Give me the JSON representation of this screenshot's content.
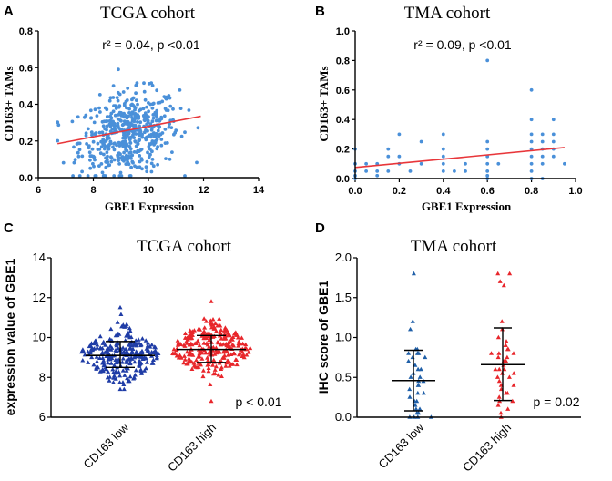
{
  "chart_data": [
    {
      "panel": "A",
      "type": "scatter",
      "title": "TCGA cohort",
      "annotation_r2": "r² = 0.04, p <0.01",
      "xlabel": "GBE1 Expression",
      "ylabel": "CD163+ TAMs",
      "xlim": [
        6,
        14
      ],
      "ylim": [
        0,
        0.8
      ],
      "xticks": [
        "6",
        "8",
        "10",
        "12",
        "14"
      ],
      "yticks": [
        "0.0",
        "0.2",
        "0.4",
        "0.6",
        "0.8"
      ],
      "point_color": "#4a90d9",
      "point_count": 520,
      "point_distribution": "x approx normal mean 9.3 sd 0.9, y approx 0.25 ± 0.12",
      "regression_line": {
        "x": [
          6.7,
          11.9
        ],
        "y": [
          0.185,
          0.335
        ],
        "color": "#e8363a"
      }
    },
    {
      "panel": "B",
      "type": "scatter",
      "title": "TMA cohort",
      "annotation_r2": "r² = 0.09, p <0.01",
      "xlabel": "GBE1 Expression",
      "ylabel": "CD163+ TAMs",
      "xlim": [
        0,
        1.0
      ],
      "ylim": [
        0,
        1.0
      ],
      "xticks": [
        "0.0",
        "0.2",
        "0.4",
        "0.6",
        "0.8",
        "1.0"
      ],
      "yticks": [
        "0.0",
        "0.2",
        "0.4",
        "0.6",
        "0.8",
        "1.0"
      ],
      "point_color": "#4a90d9",
      "points": [
        [
          0.0,
          0.2
        ],
        [
          0.0,
          0.05
        ],
        [
          0.0,
          0.02
        ],
        [
          0.0,
          0.0
        ],
        [
          0.0,
          0.1
        ],
        [
          0.05,
          0.05
        ],
        [
          0.05,
          0.1
        ],
        [
          0.1,
          0.1
        ],
        [
          0.1,
          0.05
        ],
        [
          0.1,
          0.02
        ],
        [
          0.15,
          0.2
        ],
        [
          0.15,
          0.15
        ],
        [
          0.15,
          0.05
        ],
        [
          0.2,
          0.3
        ],
        [
          0.2,
          0.1
        ],
        [
          0.2,
          0.15
        ],
        [
          0.25,
          0.05
        ],
        [
          0.3,
          0.1
        ],
        [
          0.3,
          0.25
        ],
        [
          0.4,
          0.3
        ],
        [
          0.4,
          0.2
        ],
        [
          0.4,
          0.15
        ],
        [
          0.4,
          0.1
        ],
        [
          0.4,
          0.05
        ],
        [
          0.45,
          0.05
        ],
        [
          0.5,
          0.1
        ],
        [
          0.5,
          0.05
        ],
        [
          0.6,
          0.8
        ],
        [
          0.6,
          0.25
        ],
        [
          0.6,
          0.2
        ],
        [
          0.6,
          0.15
        ],
        [
          0.6,
          0.1
        ],
        [
          0.6,
          0.05
        ],
        [
          0.6,
          0.02
        ],
        [
          0.6,
          0.0
        ],
        [
          0.65,
          0.1
        ],
        [
          0.8,
          0.6
        ],
        [
          0.8,
          0.4
        ],
        [
          0.8,
          0.3
        ],
        [
          0.8,
          0.25
        ],
        [
          0.8,
          0.2
        ],
        [
          0.8,
          0.15
        ],
        [
          0.8,
          0.1
        ],
        [
          0.8,
          0.05
        ],
        [
          0.8,
          0.0
        ],
        [
          0.85,
          0.3
        ],
        [
          0.85,
          0.25
        ],
        [
          0.85,
          0.2
        ],
        [
          0.85,
          0.15
        ],
        [
          0.85,
          0.1
        ],
        [
          0.85,
          0.0
        ],
        [
          0.9,
          0.4
        ],
        [
          0.9,
          0.3
        ],
        [
          0.9,
          0.2
        ],
        [
          0.9,
          0.25
        ],
        [
          0.9,
          0.15
        ],
        [
          0.95,
          0.1
        ]
      ],
      "regression_line": {
        "x": [
          0.0,
          0.95
        ],
        "y": [
          0.075,
          0.21
        ],
        "color": "#e8363a"
      }
    },
    {
      "panel": "C",
      "type": "scatter",
      "subtype": "dot-plot",
      "title": "TCGA cohort",
      "ylabel": "expression value of GBE1",
      "ylim": [
        6,
        14
      ],
      "yticks": [
        "6",
        "8",
        "10",
        "12",
        "14"
      ],
      "categories": [
        "CD163 low",
        "CD163 high"
      ],
      "series": [
        {
          "name": "CD163 low",
          "color": "#1f3ca6",
          "marker": "triangle",
          "mean": 9.1,
          "sd_low": 8.5,
          "sd_high": 9.8,
          "min": 7.4,
          "max": 11.5,
          "count": 260
        },
        {
          "name": "CD163 high",
          "color": "#e8262b",
          "marker": "triangle",
          "mean": 9.4,
          "sd_low": 8.75,
          "sd_high": 10.1,
          "min": 6.8,
          "max": 11.8,
          "count": 260
        }
      ],
      "p_text": "p < 0.01"
    },
    {
      "panel": "D",
      "type": "scatter",
      "subtype": "dot-plot",
      "title": "TMA cohort",
      "ylabel": "IHC score of GBE1",
      "ylim": [
        0,
        2.0
      ],
      "yticks": [
        "0.0",
        "0.5",
        "1.0",
        "1.5",
        "2.0"
      ],
      "categories": [
        "CD163 low",
        "CD163 high"
      ],
      "series": [
        {
          "name": "CD163 low",
          "color": "#1f5fa8",
          "marker": "triangle",
          "mean": 0.46,
          "sd_low": 0.08,
          "sd_high": 0.84,
          "values": [
            1.8,
            1.2,
            1.1,
            0.85,
            0.85,
            0.8,
            0.8,
            0.8,
            0.75,
            0.75,
            0.7,
            0.65,
            0.6,
            0.6,
            0.55,
            0.5,
            0.5,
            0.45,
            0.45,
            0.4,
            0.4,
            0.35,
            0.3,
            0.3,
            0.25,
            0.2,
            0.2,
            0.15,
            0.1,
            0.1,
            0.05,
            0.05,
            0.0,
            0.0,
            0.0,
            0.0
          ]
        },
        {
          "name": "CD163 high",
          "color": "#e8262b",
          "marker": "triangle",
          "mean": 0.66,
          "sd_low": 0.21,
          "sd_high": 1.12,
          "values": [
            1.8,
            1.8,
            1.7,
            1.65,
            1.2,
            1.1,
            1.0,
            0.95,
            0.9,
            0.9,
            0.85,
            0.85,
            0.8,
            0.8,
            0.8,
            0.75,
            0.75,
            0.7,
            0.7,
            0.65,
            0.6,
            0.6,
            0.6,
            0.55,
            0.55,
            0.5,
            0.5,
            0.45,
            0.4,
            0.4,
            0.35,
            0.3,
            0.3,
            0.25,
            0.2,
            0.2,
            0.15,
            0.1,
            0.05,
            0.0
          ]
        }
      ],
      "p_text": "p = 0.02"
    }
  ]
}
